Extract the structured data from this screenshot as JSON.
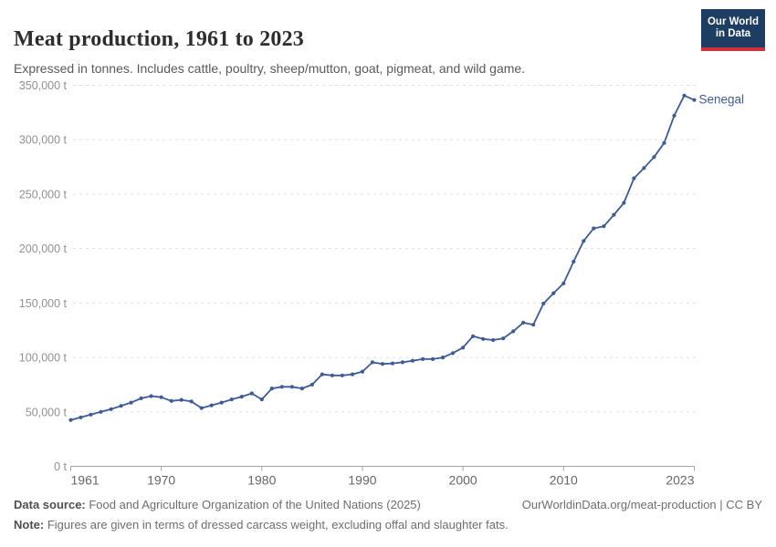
{
  "header": {
    "title": "Meat production, 1961 to 2023",
    "subtitle": "Expressed in tonnes. Includes cattle, poultry, sheep/mutton, goat, pigmeat, and wild game.",
    "logo_line1": "Our World",
    "logo_line2": "in Data"
  },
  "chart_data": {
    "type": "line",
    "title": "Meat production, 1961 to 2023",
    "entity_label": "Senegal",
    "unit": "t",
    "xlabel": "",
    "ylabel": "",
    "xlim": [
      1961,
      2023
    ],
    "ylim": [
      0,
      350000
    ],
    "grid": "dashed-horizontal",
    "legend_position": "end-of-line-label",
    "line_color": "#3d5b96",
    "x": [
      1961,
      1962,
      1963,
      1964,
      1965,
      1966,
      1967,
      1968,
      1969,
      1970,
      1971,
      1972,
      1973,
      1974,
      1975,
      1976,
      1977,
      1978,
      1979,
      1980,
      1981,
      1982,
      1983,
      1984,
      1985,
      1986,
      1987,
      1988,
      1989,
      1990,
      1991,
      1992,
      1993,
      1994,
      1995,
      1996,
      1997,
      1998,
      1999,
      2000,
      2001,
      2002,
      2003,
      2004,
      2005,
      2006,
      2007,
      2008,
      2009,
      2010,
      2011,
      2012,
      2013,
      2014,
      2015,
      2016,
      2017,
      2018,
      2019,
      2020,
      2021,
      2022,
      2023
    ],
    "series": [
      {
        "name": "Senegal",
        "values": [
          42500,
          45000,
          47500,
          50000,
          52500,
          55500,
          58500,
          62500,
          64500,
          63500,
          60000,
          61000,
          59500,
          53500,
          56000,
          58500,
          61500,
          64000,
          67000,
          61500,
          71500,
          73000,
          73000,
          71500,
          75000,
          84500,
          83500,
          83500,
          84500,
          87000,
          95500,
          94000,
          94500,
          95500,
          97000,
          98500,
          98500,
          100000,
          104000,
          109000,
          119500,
          117000,
          116000,
          117500,
          124000,
          132000,
          130000,
          149500,
          159000,
          168000,
          188000,
          207000,
          218500,
          220500,
          231000,
          242000,
          264500,
          274000,
          284000,
          297000,
          322000,
          340500,
          336400
        ]
      }
    ],
    "yticks": [
      {
        "v": 0,
        "label": "0 t"
      },
      {
        "v": 50000,
        "label": "50,000 t"
      },
      {
        "v": 100000,
        "label": "100,000 t"
      },
      {
        "v": 150000,
        "label": "150,000 t"
      },
      {
        "v": 200000,
        "label": "200,000 t"
      },
      {
        "v": 250000,
        "label": "250,000 t"
      },
      {
        "v": 300000,
        "label": "300,000 t"
      },
      {
        "v": 350000,
        "label": "350,000 t"
      }
    ],
    "xticks": [
      "1961",
      "1970",
      "1980",
      "1990",
      "2000",
      "2010",
      "2023"
    ]
  },
  "footer": {
    "datasource_label": "Data source:",
    "datasource_text": " Food and Agriculture Organization of the United Nations (2025)",
    "link_text": "OurWorldinData.org/meat-production | CC BY",
    "note_label": "Note:",
    "note_text": " Figures are given in terms of dressed carcass weight, excluding offal and slaughter fats."
  },
  "colors": {
    "line": "#3d5b96",
    "entity_label": "#3d5b96",
    "grid": "#e0e0e0",
    "axis": "#a3a3a3",
    "ytick_text": "#919191",
    "xtick_text": "#666666",
    "logo_bg": "#1d3d63",
    "logo_red": "#cf303e"
  }
}
